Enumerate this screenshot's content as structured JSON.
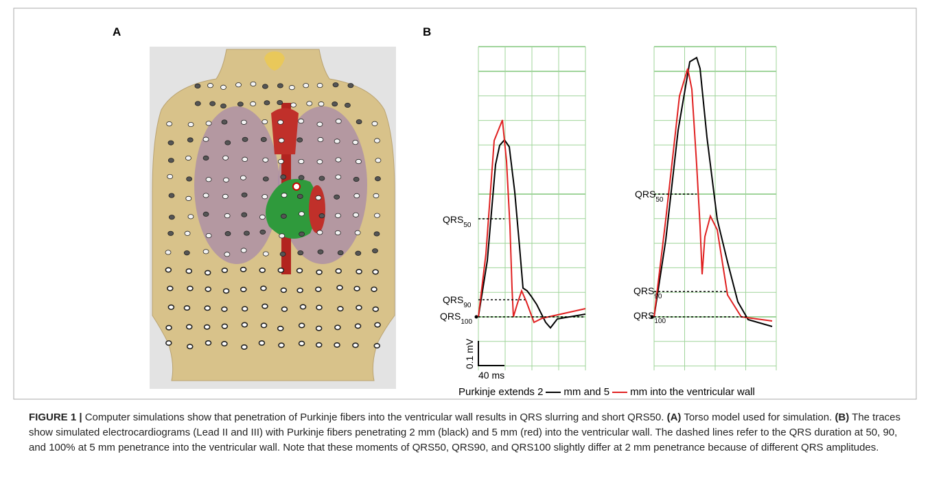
{
  "panel_a": {
    "label": "A"
  },
  "panel_b": {
    "label": "B",
    "plots": [
      {
        "markers": [
          {
            "text": "QRS",
            "sub": "50"
          },
          {
            "text": "QRS",
            "sub": "90"
          },
          {
            "text": "QRS",
            "sub": "100"
          }
        ]
      },
      {
        "markers": [
          {
            "text": "QRS",
            "sub": "50"
          },
          {
            "text": "QRS",
            "sub": "90"
          },
          {
            "text": "QRS",
            "sub": "100"
          }
        ]
      }
    ],
    "scale": {
      "y": "0.1 mV",
      "x": "40 ms"
    },
    "legend": {
      "prefix": "Purkinje extends 2",
      "middle": "mm and 5",
      "suffix": "mm into the ventricular wall"
    }
  },
  "caption": {
    "label": "FIGURE 1 | ",
    "intro": "Computer simulations show that penetration of Purkinje fibers into the ventricular wall results in QRS slurring and short QRS50. ",
    "a_label": "(A)",
    "a_text": " Torso model used for simulation. ",
    "b_label": "(B)",
    "b_text": " The traces show simulated electrocardiograms (Lead II and III) with Purkinje fibers penetrating 2 mm (black) and 5 mm (red) into the ventricular wall. The dashed lines refer to the QRS duration at 50, 90, and 100% at 5 mm penetrance into the ventricular wall. Note that these moments of QRS50, QRS90, and QRS100 slightly differ at 2 mm penetrance because of different QRS amplitudes."
  }
}
